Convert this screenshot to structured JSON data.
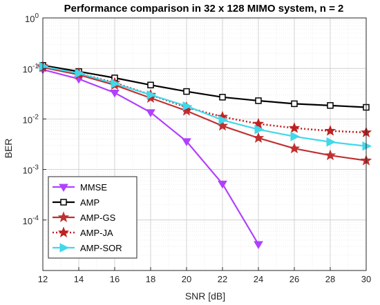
{
  "chart_data": {
    "type": "line",
    "title": "Performance comparison in 32 x 128 MIMO system, n = 2",
    "xlabel": "SNR [dB]",
    "ylabel": "BER",
    "xlim": [
      12,
      30
    ],
    "ylim": [
      1e-05,
      1
    ],
    "yscale": "log",
    "grid": true,
    "legend_position": "bottom-left",
    "x_ticks": [
      "12",
      "14",
      "16",
      "18",
      "20",
      "22",
      "24",
      "26",
      "28",
      "30"
    ],
    "y_ticks": [
      {
        "base": "10",
        "exp": "0",
        "value": 1
      },
      {
        "base": "10",
        "exp": "-1",
        "value": 0.1
      },
      {
        "base": "10",
        "exp": "-2",
        "value": 0.01
      },
      {
        "base": "10",
        "exp": "-3",
        "value": 0.001
      },
      {
        "base": "10",
        "exp": "-4",
        "value": 0.0001
      }
    ],
    "series": [
      {
        "name": "MMSE",
        "color": "#b040ff",
        "marker": "triangle-down",
        "dash": "solid",
        "x": [
          12,
          14,
          16,
          18,
          20,
          22,
          24
        ],
        "values": [
          0.095,
          0.062,
          0.033,
          0.0135,
          0.0036,
          0.00052,
          3.3e-05
        ]
      },
      {
        "name": "AMP",
        "color": "#000000",
        "marker": "square",
        "dash": "solid",
        "x": [
          12,
          14,
          16,
          18,
          20,
          22,
          24,
          26,
          28,
          30
        ],
        "values": [
          0.115,
          0.087,
          0.065,
          0.047,
          0.035,
          0.027,
          0.023,
          0.02,
          0.0185,
          0.017
        ]
      },
      {
        "name": "AMP-GS",
        "color": "#c03030",
        "marker": "star",
        "dash": "solid",
        "x": [
          12,
          14,
          16,
          18,
          20,
          22,
          24,
          26,
          28,
          30
        ],
        "values": [
          0.105,
          0.075,
          0.047,
          0.026,
          0.0145,
          0.0073,
          0.0042,
          0.0026,
          0.0019,
          0.0015
        ]
      },
      {
        "name": "AMP-JA",
        "color": "#c02020",
        "marker": "star",
        "dash": "dotted",
        "x": [
          12,
          14,
          16,
          18,
          20,
          22,
          24,
          26,
          28,
          30
        ],
        "values": [
          0.11,
          0.08,
          0.052,
          0.03,
          0.017,
          0.011,
          0.008,
          0.0066,
          0.0058,
          0.0054
        ]
      },
      {
        "name": "AMP-SOR",
        "color": "#40d8ea",
        "marker": "triangle-right",
        "dash": "solid",
        "x": [
          12,
          14,
          16,
          18,
          20,
          22,
          24,
          26,
          28,
          30
        ],
        "values": [
          0.11,
          0.08,
          0.05,
          0.03,
          0.018,
          0.0095,
          0.0062,
          0.0045,
          0.0035,
          0.0029
        ]
      }
    ]
  }
}
